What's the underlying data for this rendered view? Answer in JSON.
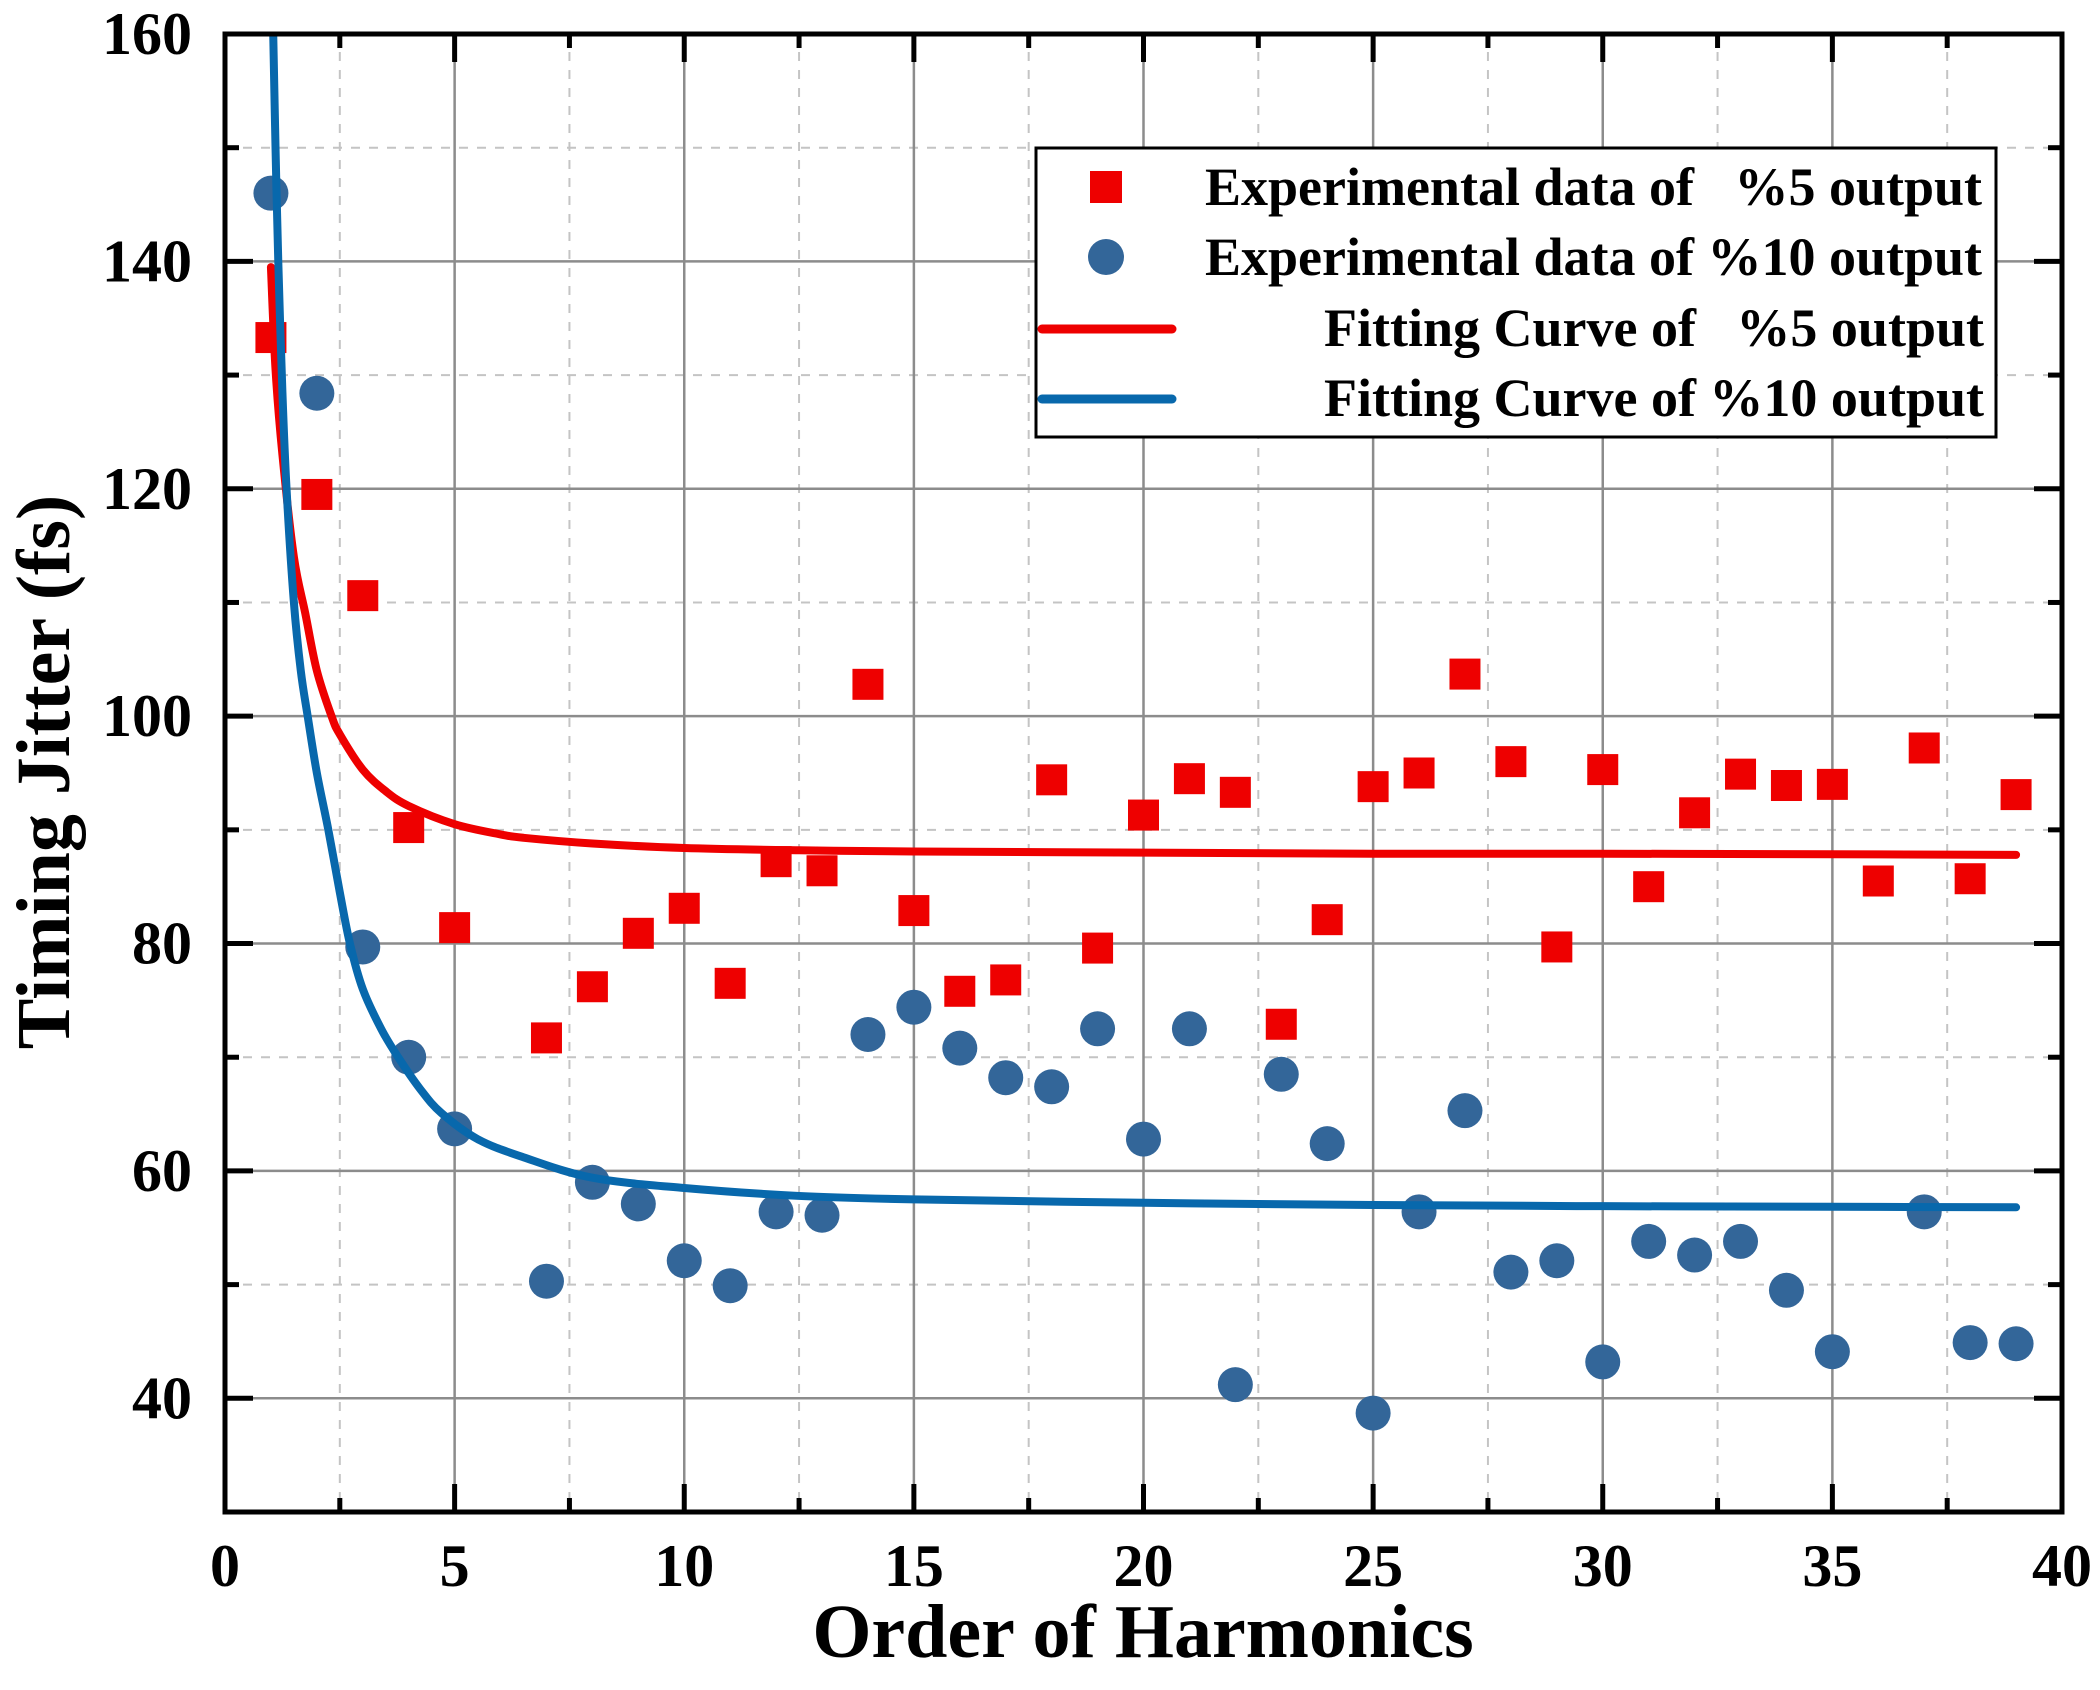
{
  "chart_data": {
    "type": "scatter",
    "title": "",
    "xlabel": "Order of Harmonics",
    "ylabel": "Timing Jitter (fs)",
    "xlim": [
      0,
      40
    ],
    "ylim": [
      30,
      160
    ],
    "xticks": [
      0,
      5,
      10,
      15,
      20,
      25,
      30,
      35,
      40
    ],
    "xtick_labels": [
      "0",
      "5",
      "10",
      "15",
      "20",
      "25",
      "30",
      "35",
      "40"
    ],
    "yticks": [
      40,
      60,
      80,
      100,
      120,
      140,
      160
    ],
    "ytick_labels": [
      "40",
      "60",
      "80",
      "100",
      "120",
      "140",
      "160"
    ],
    "grid": true,
    "legend": "top-right",
    "series": [
      {
        "name": "Experimental data of   %5 output",
        "kind": "scatter",
        "marker": "square",
        "color": "#EE0000",
        "x": [
          1,
          2,
          3,
          4,
          5,
          7,
          8,
          9,
          10,
          11,
          12,
          13,
          14,
          15,
          16,
          17,
          18,
          19,
          20,
          21,
          22,
          23,
          24,
          25,
          26,
          27,
          28,
          29,
          30,
          31,
          32,
          33,
          34,
          35,
          36,
          37,
          38,
          39
        ],
        "y": [
          133.3,
          119.5,
          110.6,
          90.2,
          81.4,
          71.7,
          76.2,
          80.9,
          83.1,
          76.5,
          87.2,
          86.4,
          102.8,
          82.9,
          75.8,
          76.8,
          94.4,
          79.6,
          91.3,
          94.5,
          93.3,
          72.9,
          82.1,
          93.8,
          95.0,
          103.7,
          96.0,
          79.7,
          95.3,
          85.0,
          91.5,
          94.9,
          93.9,
          94.0,
          85.5,
          97.2,
          85.7,
          93.1
        ]
      },
      {
        "name": "Experimental data of %10 output",
        "kind": "scatter",
        "marker": "circle",
        "color": "#336699",
        "x": [
          1,
          2,
          3,
          4,
          5,
          7,
          8,
          9,
          10,
          11,
          12,
          13,
          14,
          15,
          16,
          17,
          18,
          19,
          20,
          21,
          22,
          23,
          24,
          25,
          26,
          27,
          28,
          29,
          30,
          31,
          32,
          33,
          34,
          35,
          37,
          38,
          39
        ],
        "y": [
          146.0,
          128.4,
          79.7,
          70.0,
          63.7,
          50.3,
          59.0,
          57.1,
          52.1,
          49.9,
          56.4,
          56.1,
          72.0,
          74.4,
          70.8,
          68.2,
          67.4,
          72.5,
          62.8,
          72.5,
          41.2,
          68.5,
          62.4,
          38.7,
          56.4,
          65.3,
          51.1,
          52.1,
          43.2,
          53.8,
          52.6,
          53.8,
          49.5,
          44.1,
          56.4,
          44.9,
          44.8
        ]
      },
      {
        "name": "Fitting Curve of   %5 output",
        "kind": "line",
        "color": "#EE0000",
        "x": [
          1.0,
          1.1,
          1.25,
          1.5,
          1.75,
          2.0,
          2.32,
          2.5,
          3.0,
          3.5,
          4.0,
          5.0,
          6.0,
          6.5,
          8.0,
          10.0,
          12.5,
          15.0,
          20.0,
          25.0,
          30.0,
          35.0,
          39.0
        ],
        "y": [
          139.5,
          130.5,
          123.0,
          114.0,
          109.0,
          104.0,
          100.0,
          98.4,
          95.3,
          93.4,
          92.1,
          90.5,
          89.6,
          89.3,
          88.8,
          88.4,
          88.2,
          88.1,
          88.0,
          87.9,
          87.9,
          87.85,
          87.8
        ]
      },
      {
        "name": "Fitting Curve of %10 output",
        "kind": "line",
        "color": "#0868AC",
        "x": [
          1.0,
          1.05,
          1.1,
          1.16,
          1.25,
          1.34,
          1.5,
          1.65,
          1.8,
          2.0,
          2.25,
          2.5,
          2.72,
          3.0,
          3.4,
          3.77,
          4.25,
          4.71,
          5.5,
          6.5,
          8.0,
          10.0,
          12.5,
          15.0,
          20.0,
          25.0,
          30.0,
          35.0,
          39.0
        ],
        "y": [
          168.0,
          160.0,
          150.0,
          140.0,
          128.5,
          120.0,
          110.0,
          104.0,
          100.0,
          95.0,
          90.0,
          84.5,
          80.0,
          76.0,
          72.5,
          70.0,
          67.2,
          65.1,
          62.8,
          61.2,
          59.4,
          58.5,
          57.8,
          57.5,
          57.2,
          57.0,
          56.9,
          56.85,
          56.8
        ]
      }
    ]
  }
}
